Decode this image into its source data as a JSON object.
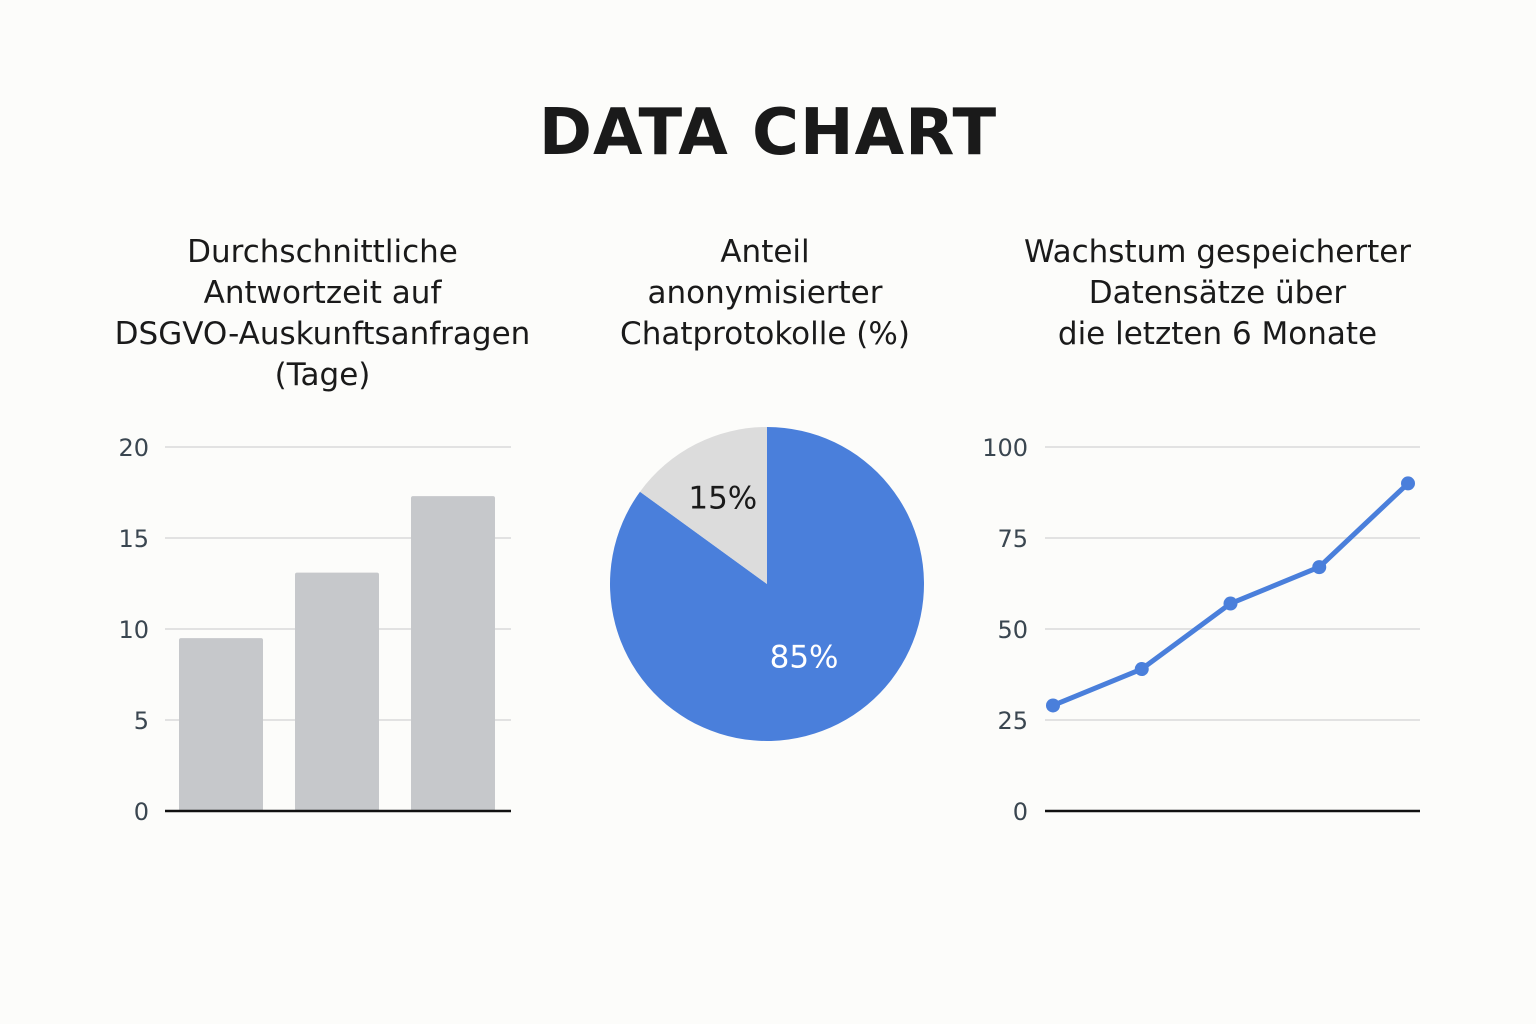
{
  "title": "DATA CHART",
  "colors": {
    "accent": "#4a7fdb",
    "bar": "#c6c8cb",
    "pie_rest": "#dcdcdc",
    "grid": "#e2e2e2",
    "axis": "#111111"
  },
  "chart_data": [
    {
      "type": "bar",
      "title_lines": [
        "Durchschnittliche",
        "Antwortzeit auf",
        "DSGVO-Auskunftsanfragen",
        "(Tage)"
      ],
      "values": [
        9.5,
        13.1,
        17.3
      ],
      "ylim": [
        0,
        20
      ],
      "yticks": [
        0,
        5,
        10,
        15,
        20
      ],
      "grid": true
    },
    {
      "type": "pie",
      "title_lines": [
        "Anteil",
        "anonymisierter",
        "Chatprotokolle (%)"
      ],
      "slices": [
        {
          "value": 85,
          "label": "85%"
        },
        {
          "value": 15,
          "label": "15%"
        }
      ]
    },
    {
      "type": "line",
      "title_lines": [
        "Wachstum gespeicherter",
        "Datensätze über",
        "die letzten 6 Monate"
      ],
      "values": [
        29,
        39,
        57,
        67,
        90
      ],
      "ylim": [
        0,
        100
      ],
      "yticks": [
        0,
        25,
        50,
        75,
        100
      ],
      "grid": true
    }
  ]
}
